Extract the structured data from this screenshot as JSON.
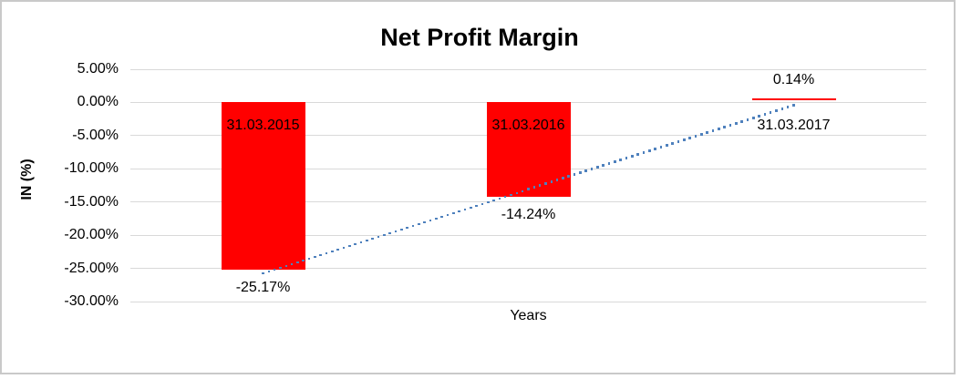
{
  "chart_data": {
    "type": "bar",
    "title": "Net Profit Margin",
    "xlabel": "Years",
    "ylabel": "IN (%)",
    "categories": [
      "31.03.2015",
      "31.03.2016",
      "31.03.2017"
    ],
    "values": [
      -25.17,
      -14.24,
      0.14
    ],
    "data_labels": [
      "-25.17%",
      "-14.24%",
      "0.14%"
    ],
    "ylim": [
      -30,
      5
    ],
    "ytick_step": 5,
    "ytick_labels": [
      "5.00%",
      "0.00%",
      "-5.00%",
      "-10.00%",
      "-15.00%",
      "-20.00%",
      "-25.00%",
      "-30.00%"
    ],
    "grid": true,
    "legend": false,
    "bar_color": "#ff0000",
    "gridline_color": "#d9d9d9",
    "border_color": "#c9c9c9",
    "text_color": "#000000",
    "trendline": {
      "type": "linear",
      "style": "dotted",
      "color": "#4f81bd"
    }
  }
}
